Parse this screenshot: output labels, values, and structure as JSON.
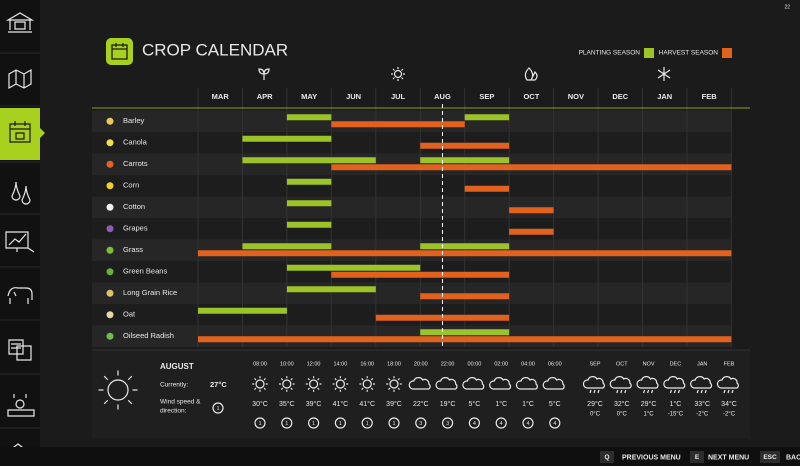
{
  "header": {
    "title": "CROP CALENDAR",
    "corner": "22",
    "legend": [
      {
        "label": "PLANTING SEASON",
        "color": "#9cc428"
      },
      {
        "label": "HARVEST SEASON",
        "color": "#e0621e"
      }
    ]
  },
  "calendar": {
    "months": [
      "MAR",
      "APR",
      "MAY",
      "JUN",
      "JUL",
      "AUG",
      "SEP",
      "OCT",
      "NOV",
      "DEC",
      "JAN",
      "FEB"
    ],
    "today": 5.5,
    "crops": [
      {
        "name": "Barley",
        "planting": [
          [
            2,
            3
          ],
          [
            6,
            7
          ]
        ],
        "harvest": [
          [
            3,
            6
          ]
        ]
      },
      {
        "name": "Canola",
        "planting": [
          [
            1,
            3
          ]
        ],
        "harvest": [
          [
            5,
            7
          ]
        ]
      },
      {
        "name": "Carrots",
        "planting": [
          [
            1,
            4
          ],
          [
            5,
            7
          ]
        ],
        "harvest": [
          [
            3,
            12
          ]
        ]
      },
      {
        "name": "Corn",
        "planting": [
          [
            2,
            3
          ]
        ],
        "harvest": [
          [
            6,
            7
          ]
        ]
      },
      {
        "name": "Cotton",
        "planting": [
          [
            2,
            3
          ]
        ],
        "harvest": [
          [
            7,
            8
          ]
        ]
      },
      {
        "name": "Grapes",
        "planting": [
          [
            2,
            3
          ]
        ],
        "harvest": [
          [
            7,
            8
          ]
        ]
      },
      {
        "name": "Grass",
        "planting": [
          [
            1,
            3
          ],
          [
            5,
            7
          ]
        ],
        "harvest": [
          [
            0,
            12
          ]
        ]
      },
      {
        "name": "Green Beans",
        "planting": [
          [
            2,
            5
          ]
        ],
        "harvest": [
          [
            3,
            7
          ]
        ]
      },
      {
        "name": "Long Grain Rice",
        "planting": [
          [
            2,
            4
          ]
        ],
        "harvest": [
          [
            5,
            7
          ]
        ]
      },
      {
        "name": "Oat",
        "planting": [
          [
            0,
            2
          ]
        ],
        "harvest": [
          [
            4,
            7
          ]
        ]
      },
      {
        "name": "Oilseed Radish",
        "planting": [
          [
            5,
            7
          ]
        ],
        "harvest": [
          [
            0,
            12
          ]
        ]
      }
    ]
  },
  "weather": {
    "month": "AUGUST",
    "current_label": "Currently:",
    "current": "27°C",
    "wind_label": [
      "Wind speed &",
      "direction:"
    ],
    "wind_now": "1",
    "hourly": [
      {
        "time": "08:00",
        "temp": "30°C",
        "wind": "1",
        "sky": "sun"
      },
      {
        "time": "10:00",
        "temp": "35°C",
        "wind": "1",
        "sky": "sun"
      },
      {
        "time": "12:00",
        "temp": "39°C",
        "wind": "1",
        "sky": "sun"
      },
      {
        "time": "14:00",
        "temp": "41°C",
        "wind": "1",
        "sky": "sun"
      },
      {
        "time": "16:00",
        "temp": "41°C",
        "wind": "1",
        "sky": "sun"
      },
      {
        "time": "18:00",
        "temp": "39°C",
        "wind": "1",
        "sky": "sun"
      },
      {
        "time": "20:00",
        "temp": "22°C",
        "wind": "3",
        "sky": "cloud"
      },
      {
        "time": "22:00",
        "temp": "19°C",
        "wind": "3",
        "sky": "cloud"
      },
      {
        "time": "00:00",
        "temp": "5°C",
        "wind": "4",
        "sky": "cloud"
      },
      {
        "time": "02:00",
        "temp": "1°C",
        "wind": "4",
        "sky": "cloud"
      },
      {
        "time": "04:00",
        "temp": "1°C",
        "wind": "4",
        "sky": "cloud"
      },
      {
        "time": "06:00",
        "temp": "5°C",
        "wind": "4",
        "sky": "cloud"
      }
    ],
    "monthly": [
      {
        "month": "SEP",
        "high": "29°C",
        "low": "0°C"
      },
      {
        "month": "OCT",
        "high": "32°C",
        "low": "0°C"
      },
      {
        "month": "NOV",
        "high": "29°C",
        "low": "1°C"
      },
      {
        "month": "DEC",
        "high": "1°C",
        "low": "-15°C"
      },
      {
        "month": "JAN",
        "high": "33°C",
        "low": "-2°C"
      },
      {
        "month": "FEB",
        "high": "34°C",
        "low": "-2°C"
      }
    ]
  },
  "footer": [
    {
      "key": "Q",
      "label": "PREVIOUS MENU"
    },
    {
      "key": "E",
      "label": "NEXT MENU"
    },
    {
      "key": "ESC",
      "label": "BACK"
    }
  ]
}
